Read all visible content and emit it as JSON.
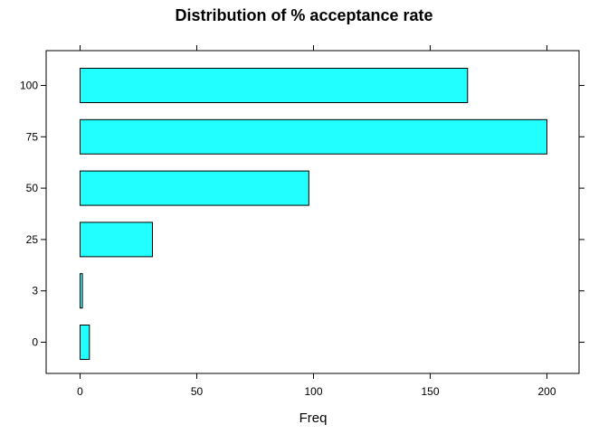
{
  "chart_data": {
    "type": "bar",
    "orientation": "horizontal",
    "title": "Distribution of % acceptance rate",
    "xlabel": "Freq",
    "ylabel": "",
    "categories": [
      "0",
      "3",
      "25",
      "50",
      "75",
      "100"
    ],
    "values": [
      4,
      1,
      31,
      98,
      200,
      166
    ],
    "xlim": [
      0,
      200
    ],
    "x_ticks": [
      0,
      50,
      100,
      150,
      200
    ],
    "grid": false,
    "legend": "none",
    "colors": {
      "bar_fill": "#22ffff",
      "bar_stroke": "#000000",
      "axis": "#000000"
    }
  }
}
